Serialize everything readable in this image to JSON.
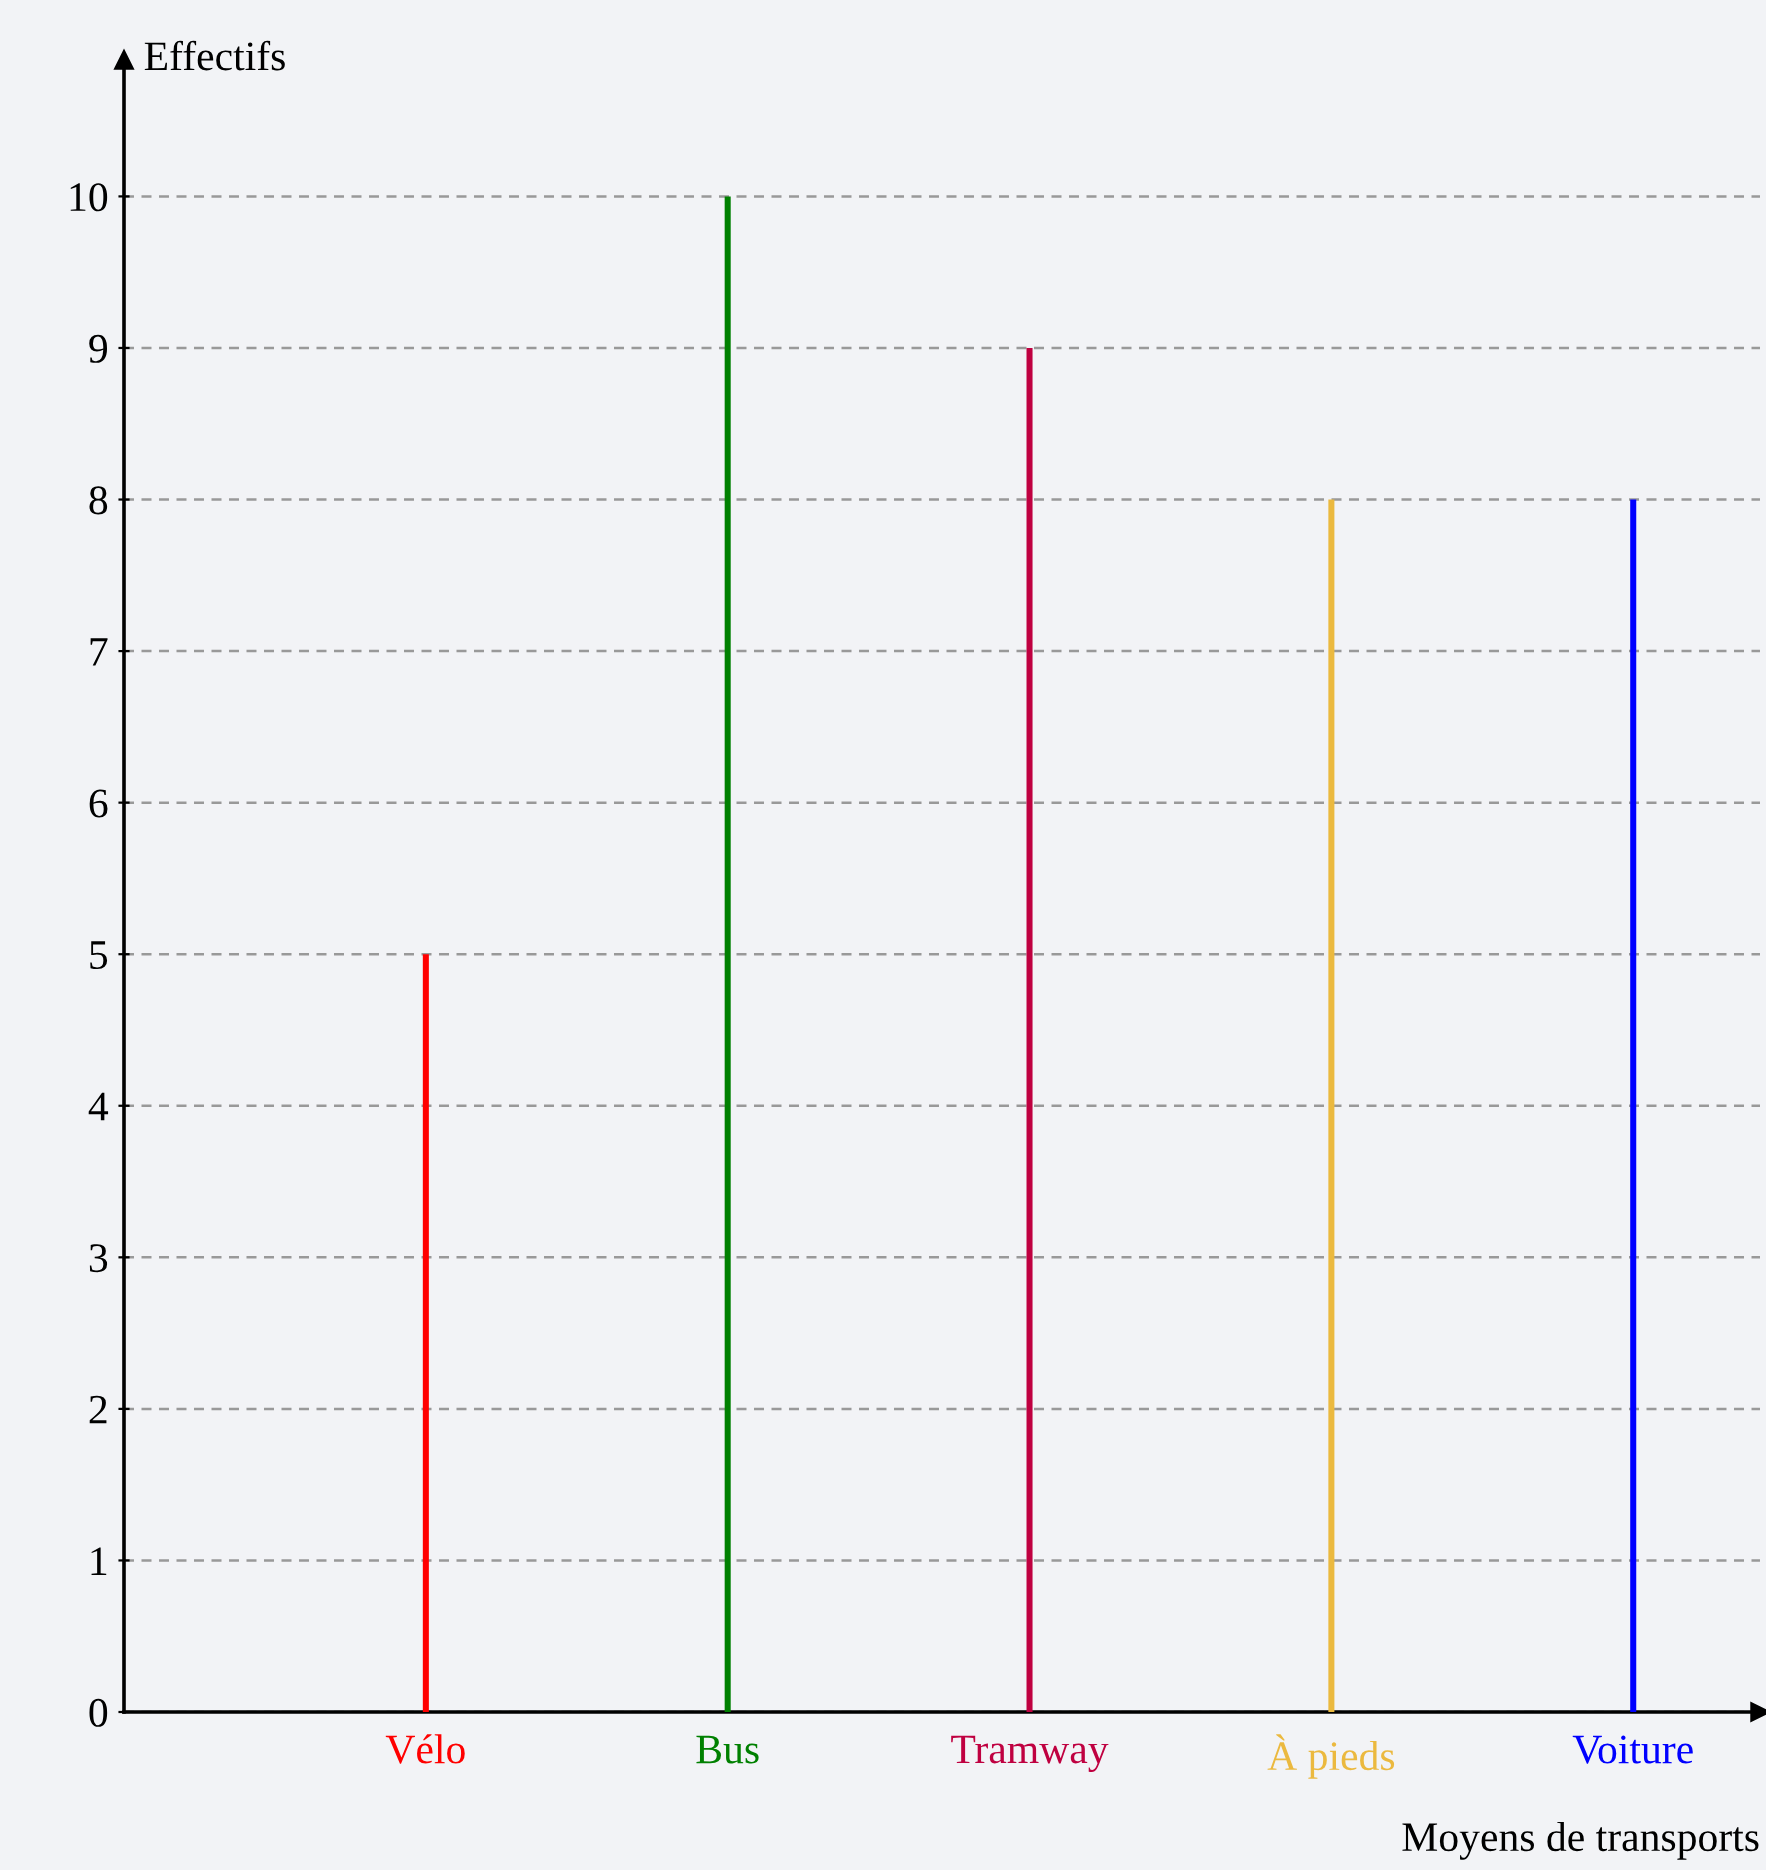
{
  "chart_data": {
    "type": "bar",
    "categories": [
      "Vélo",
      "Bus",
      "Tramway",
      "À pieds",
      "Voiture"
    ],
    "values": [
      5,
      10,
      9,
      8,
      8
    ],
    "colors": [
      "#ff0000",
      "#008000",
      "#bf0040",
      "#ebb93f",
      "#0000ff"
    ],
    "xlabel": "Moyens de transports",
    "ylabel": "Effectifs",
    "ylim": [
      0,
      10.9
    ],
    "yticks": [
      0,
      1,
      2,
      3,
      4,
      5,
      6,
      7,
      8,
      9,
      10
    ],
    "grid": "y",
    "legend": false
  }
}
